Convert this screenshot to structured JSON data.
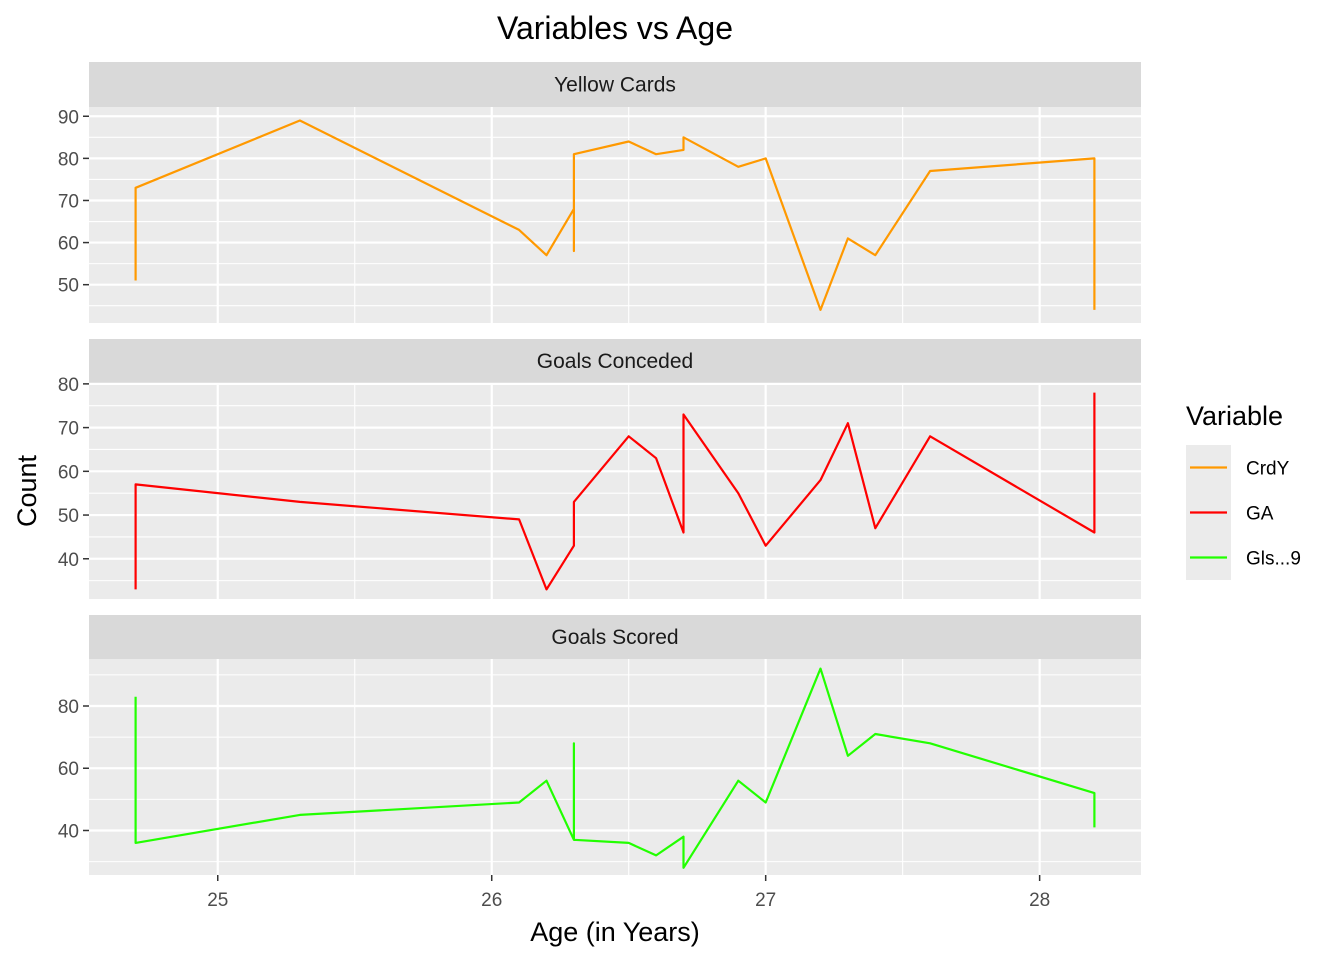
{
  "chart_data": {
    "type": "line",
    "title": "Variables vs Age",
    "xlabel": "Age (in Years)",
    "ylabel": "Count",
    "x_ticks": [
      25,
      26,
      27,
      28
    ],
    "xlim": [
      24.53,
      28.37
    ],
    "grid": true,
    "legend": {
      "title": "Variable",
      "position": "right",
      "entries": [
        {
          "label": "CrdY",
          "color": "#FF9900"
        },
        {
          "label": "GA",
          "color": "#FF0000"
        },
        {
          "label": "Gls...9",
          "color": "#22FF00"
        }
      ]
    },
    "facets": [
      {
        "label": "Yellow Cards",
        "series": "CrdY",
        "color": "#FF9900",
        "ylim": [
          40.9,
          92.2
        ],
        "y_ticks": [
          50,
          60,
          70,
          80,
          90
        ],
        "points": [
          [
            24.7,
            51
          ],
          [
            24.7,
            73
          ],
          [
            25.3,
            89
          ],
          [
            26.1,
            63
          ],
          [
            26.2,
            57
          ],
          [
            26.3,
            68
          ],
          [
            26.3,
            58
          ],
          [
            26.3,
            81
          ],
          [
            26.5,
            84
          ],
          [
            26.6,
            81
          ],
          [
            26.7,
            82
          ],
          [
            26.7,
            85
          ],
          [
            26.9,
            78
          ],
          [
            27.0,
            80
          ],
          [
            27.2,
            44
          ],
          [
            27.3,
            61
          ],
          [
            27.4,
            57
          ],
          [
            27.6,
            77
          ],
          [
            28.2,
            80
          ],
          [
            28.2,
            44
          ]
        ]
      },
      {
        "label": "Goals Conceded",
        "series": "GA",
        "color": "#FF0000",
        "ylim": [
          30.8,
          80.2
        ],
        "y_ticks": [
          40,
          50,
          60,
          70,
          80
        ],
        "points": [
          [
            24.7,
            33
          ],
          [
            24.7,
            57
          ],
          [
            25.3,
            53
          ],
          [
            26.1,
            49
          ],
          [
            26.2,
            33
          ],
          [
            26.3,
            43
          ],
          [
            26.3,
            53
          ],
          [
            26.5,
            68
          ],
          [
            26.6,
            63
          ],
          [
            26.7,
            46
          ],
          [
            26.7,
            73
          ],
          [
            26.9,
            55
          ],
          [
            27.0,
            43
          ],
          [
            27.2,
            58
          ],
          [
            27.3,
            71
          ],
          [
            27.4,
            47
          ],
          [
            27.6,
            68
          ],
          [
            28.2,
            46
          ],
          [
            28.2,
            78
          ]
        ]
      },
      {
        "label": "Goals Scored",
        "series": "Gls...9",
        "color": "#22FF00",
        "ylim": [
          25.7,
          95.1
        ],
        "y_ticks": [
          40,
          60,
          80
        ],
        "points": [
          [
            24.7,
            83
          ],
          [
            24.7,
            36
          ],
          [
            25.3,
            45
          ],
          [
            26.1,
            49
          ],
          [
            26.2,
            56
          ],
          [
            26.3,
            37
          ],
          [
            26.3,
            68
          ],
          [
            26.3,
            37
          ],
          [
            26.5,
            36
          ],
          [
            26.6,
            32
          ],
          [
            26.7,
            38
          ],
          [
            26.7,
            28
          ],
          [
            26.9,
            56
          ],
          [
            27.0,
            49
          ],
          [
            27.2,
            92
          ],
          [
            27.3,
            64
          ],
          [
            27.4,
            71
          ],
          [
            27.6,
            68
          ],
          [
            28.2,
            52
          ],
          [
            28.2,
            41
          ]
        ]
      }
    ]
  }
}
